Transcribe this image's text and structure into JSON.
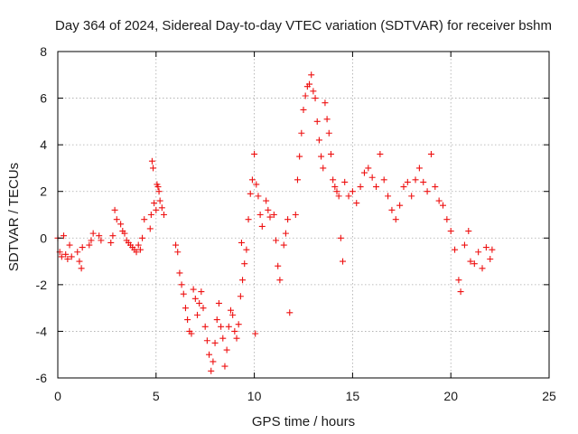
{
  "chart_data": {
    "type": "scatter",
    "title": "Day 364 of 2024, Sidereal Day-to-day VTEC variation (SDTVAR) for receiver bshm",
    "xlabel": "GPS time / hours",
    "ylabel": "SDTVAR / TECUs",
    "xlim": [
      0,
      25
    ],
    "ylim": [
      -6,
      8
    ],
    "xticks": [
      0,
      5,
      10,
      15,
      20,
      25
    ],
    "yticks": [
      -6,
      -4,
      -2,
      0,
      2,
      4,
      6,
      8
    ],
    "grid": true,
    "marker": "+",
    "color": "#ee1111",
    "series": [
      {
        "name": "SDTVAR",
        "points": [
          [
            0.0,
            0.0
          ],
          [
            0.1,
            -0.6
          ],
          [
            0.2,
            -0.8
          ],
          [
            0.3,
            0.1
          ],
          [
            0.4,
            -0.7
          ],
          [
            0.5,
            -0.9
          ],
          [
            0.6,
            -0.3
          ],
          [
            0.7,
            -0.8
          ],
          [
            1.0,
            -0.6
          ],
          [
            1.1,
            -1.0
          ],
          [
            1.2,
            -1.3
          ],
          [
            1.25,
            -0.4
          ],
          [
            1.6,
            -0.3
          ],
          [
            1.7,
            -0.1
          ],
          [
            1.8,
            0.2
          ],
          [
            2.1,
            0.1
          ],
          [
            2.2,
            -0.1
          ],
          [
            2.7,
            -0.2
          ],
          [
            2.8,
            0.1
          ],
          [
            2.9,
            1.2
          ],
          [
            3.0,
            0.8
          ],
          [
            3.2,
            0.6
          ],
          [
            3.3,
            0.3
          ],
          [
            3.4,
            0.2
          ],
          [
            3.5,
            -0.1
          ],
          [
            3.6,
            -0.2
          ],
          [
            3.7,
            -0.3
          ],
          [
            3.8,
            -0.4
          ],
          [
            3.9,
            -0.5
          ],
          [
            4.0,
            -0.6
          ],
          [
            4.1,
            -0.3
          ],
          [
            4.2,
            -0.5
          ],
          [
            4.3,
            0.0
          ],
          [
            4.4,
            0.8
          ],
          [
            4.7,
            0.4
          ],
          [
            4.75,
            1.0
          ],
          [
            4.8,
            3.3
          ],
          [
            4.85,
            3.0
          ],
          [
            4.9,
            1.5
          ],
          [
            5.0,
            1.2
          ],
          [
            5.05,
            2.3
          ],
          [
            5.1,
            2.2
          ],
          [
            5.15,
            2.0
          ],
          [
            5.2,
            1.6
          ],
          [
            5.3,
            1.3
          ],
          [
            5.4,
            1.0
          ],
          [
            6.0,
            -0.3
          ],
          [
            6.1,
            -0.6
          ],
          [
            6.2,
            -1.5
          ],
          [
            6.3,
            -2.0
          ],
          [
            6.4,
            -2.4
          ],
          [
            6.5,
            -3.0
          ],
          [
            6.6,
            -3.5
          ],
          [
            6.7,
            -4.0
          ],
          [
            6.8,
            -4.1
          ],
          [
            6.9,
            -2.2
          ],
          [
            7.0,
            -2.6
          ],
          [
            7.1,
            -3.3
          ],
          [
            7.2,
            -2.8
          ],
          [
            7.3,
            -2.3
          ],
          [
            7.4,
            -3.0
          ],
          [
            7.5,
            -3.8
          ],
          [
            7.6,
            -4.4
          ],
          [
            7.7,
            -5.0
          ],
          [
            7.8,
            -5.7
          ],
          [
            7.9,
            -5.3
          ],
          [
            8.0,
            -4.5
          ],
          [
            8.1,
            -3.5
          ],
          [
            8.2,
            -2.8
          ],
          [
            8.3,
            -3.8
          ],
          [
            8.4,
            -4.3
          ],
          [
            8.5,
            -5.5
          ],
          [
            8.6,
            -4.8
          ],
          [
            8.7,
            -3.8
          ],
          [
            8.8,
            -3.1
          ],
          [
            8.9,
            -3.3
          ],
          [
            9.0,
            -4.0
          ],
          [
            9.1,
            -4.3
          ],
          [
            9.2,
            -3.7
          ],
          [
            9.3,
            -2.5
          ],
          [
            9.35,
            -0.2
          ],
          [
            9.4,
            -1.8
          ],
          [
            9.5,
            -1.1
          ],
          [
            9.6,
            -0.5
          ],
          [
            9.7,
            0.8
          ],
          [
            9.8,
            1.9
          ],
          [
            9.9,
            2.5
          ],
          [
            10.0,
            3.6
          ],
          [
            10.05,
            -4.1
          ],
          [
            10.1,
            2.3
          ],
          [
            10.2,
            1.8
          ],
          [
            10.3,
            1.0
          ],
          [
            10.4,
            0.5
          ],
          [
            10.6,
            1.6
          ],
          [
            10.7,
            1.2
          ],
          [
            10.8,
            0.9
          ],
          [
            11.0,
            1.0
          ],
          [
            11.1,
            -0.1
          ],
          [
            11.2,
            -1.2
          ],
          [
            11.3,
            -1.8
          ],
          [
            11.5,
            -0.3
          ],
          [
            11.6,
            0.2
          ],
          [
            11.7,
            0.8
          ],
          [
            11.8,
            -3.2
          ],
          [
            12.1,
            1.0
          ],
          [
            12.2,
            2.5
          ],
          [
            12.3,
            3.5
          ],
          [
            12.4,
            4.5
          ],
          [
            12.5,
            5.5
          ],
          [
            12.6,
            6.1
          ],
          [
            12.7,
            6.5
          ],
          [
            12.8,
            6.6
          ],
          [
            12.9,
            7.0
          ],
          [
            13.0,
            6.3
          ],
          [
            13.1,
            6.0
          ],
          [
            13.2,
            5.0
          ],
          [
            13.3,
            4.2
          ],
          [
            13.4,
            3.5
          ],
          [
            13.5,
            3.0
          ],
          [
            13.6,
            5.8
          ],
          [
            13.7,
            5.1
          ],
          [
            13.8,
            4.5
          ],
          [
            13.9,
            3.6
          ],
          [
            14.0,
            2.5
          ],
          [
            14.1,
            2.2
          ],
          [
            14.2,
            2.0
          ],
          [
            14.3,
            1.8
          ],
          [
            14.4,
            0.0
          ],
          [
            14.5,
            -1.0
          ],
          [
            14.6,
            2.4
          ],
          [
            14.8,
            1.8
          ],
          [
            15.0,
            2.0
          ],
          [
            15.2,
            1.5
          ],
          [
            15.4,
            2.2
          ],
          [
            15.6,
            2.8
          ],
          [
            15.8,
            3.0
          ],
          [
            16.0,
            2.6
          ],
          [
            16.2,
            2.2
          ],
          [
            16.4,
            3.6
          ],
          [
            16.6,
            2.5
          ],
          [
            16.8,
            1.8
          ],
          [
            17.0,
            1.2
          ],
          [
            17.2,
            0.8
          ],
          [
            17.4,
            1.4
          ],
          [
            17.6,
            2.2
          ],
          [
            17.8,
            2.4
          ],
          [
            18.0,
            1.8
          ],
          [
            18.2,
            2.5
          ],
          [
            18.4,
            3.0
          ],
          [
            18.6,
            2.4
          ],
          [
            18.8,
            2.0
          ],
          [
            19.0,
            3.6
          ],
          [
            19.2,
            2.2
          ],
          [
            19.4,
            1.6
          ],
          [
            19.6,
            1.4
          ],
          [
            19.8,
            0.8
          ],
          [
            20.0,
            0.3
          ],
          [
            20.2,
            -0.5
          ],
          [
            20.4,
            -1.8
          ],
          [
            20.5,
            -2.3
          ],
          [
            20.7,
            -0.3
          ],
          [
            20.9,
            0.3
          ],
          [
            21.0,
            -1.0
          ],
          [
            21.2,
            -1.1
          ],
          [
            21.4,
            -0.6
          ],
          [
            21.6,
            -1.3
          ],
          [
            21.8,
            -0.4
          ],
          [
            22.0,
            -0.9
          ],
          [
            22.1,
            -0.5
          ]
        ]
      }
    ]
  }
}
